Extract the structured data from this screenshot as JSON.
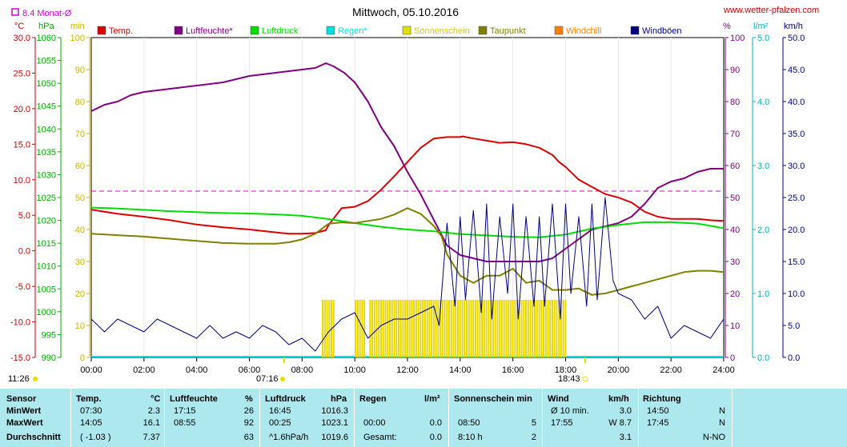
{
  "header": {
    "title": "Mittwoch, 05.10.2016",
    "site": "www.wetter-pfalzen.com",
    "avg_marker": "8.4 Monat-Ø",
    "unit_temp": "°C",
    "unit_pressure": "hPa",
    "unit_sun": "min",
    "unit_humidity": "%",
    "unit_rain": "l/m²",
    "unit_wind": "km/h"
  },
  "legend": [
    {
      "label": "Temp.",
      "color": "#dd0000"
    },
    {
      "label": "Luftfeuchte*",
      "color": "#800080"
    },
    {
      "label": "Luftdruck",
      "color": "#00dd00"
    },
    {
      "label": "Regen*",
      "color": "#00e0e0"
    },
    {
      "label": "Sonnenschein",
      "color": "#e0e000"
    },
    {
      "label": "Taupunkt",
      "color": "#808000"
    },
    {
      "label": "Windchill",
      "color": "#ff8000"
    },
    {
      "label": "Windböen",
      "color": "#000080"
    }
  ],
  "sun": {
    "sunrise": "07:16",
    "sunset": "18:43",
    "daylength": "11:26"
  },
  "chart_data": {
    "type": "line",
    "title": "Mittwoch, 05.10.2016",
    "x_ticks": [
      "00:00",
      "02:00",
      "04:00",
      "06:00",
      "08:00",
      "10:00",
      "12:00",
      "14:00",
      "16:00",
      "18:00",
      "20:00",
      "22:00",
      "24:00"
    ],
    "x_range_hours": [
      0,
      24
    ],
    "axes": {
      "temp": {
        "label": "°C",
        "range": [
          -15,
          30
        ],
        "ticks": [
          "30.0",
          "25.0",
          "20.0",
          "15.0",
          "10.0",
          "5.0",
          "0.0",
          "-5.0",
          "-10.0",
          "-15.0"
        ]
      },
      "pressure": {
        "label": "hPa",
        "range": [
          990,
          1060
        ],
        "ticks": [
          "1060",
          "1055",
          "1050",
          "1045",
          "1040",
          "1035",
          "1030",
          "1025",
          "1020",
          "1015",
          "1010",
          "1005",
          "1000",
          "995",
          "990"
        ]
      },
      "sun": {
        "label": "min",
        "range": [
          0,
          100
        ],
        "ticks": [
          "100",
          "90",
          "80",
          "70",
          "60",
          "50",
          "40",
          "30",
          "20",
          "10",
          "0"
        ]
      },
      "humidity": {
        "label": "%",
        "range": [
          0,
          100
        ],
        "ticks": [
          "100",
          "90",
          "80",
          "70",
          "60",
          "50",
          "40",
          "30",
          "20",
          "10",
          "0"
        ]
      },
      "rain": {
        "label": "l/m²",
        "range": [
          0,
          5
        ],
        "ticks": [
          "5.0",
          "4.0",
          "3.0",
          "2.0",
          "1.0",
          "0.0"
        ]
      },
      "wind": {
        "label": "km/h",
        "range": [
          0,
          50
        ],
        "ticks": [
          "50.0",
          "45.0",
          "40.0",
          "35.0",
          "30.0",
          "25.0",
          "20.0",
          "15.0",
          "10.0",
          "5.0",
          "0.0"
        ]
      }
    },
    "monthly_avg_temp": 8.4,
    "series": [
      {
        "name": "Temp.",
        "axis": "temp",
        "color": "#dd0000",
        "x": [
          0,
          1,
          2,
          3,
          4,
          5,
          6,
          7,
          7.5,
          8,
          8.5,
          8.9,
          9,
          9.5,
          10,
          10.5,
          11,
          11.5,
          12,
          12.5,
          13,
          13.5,
          14,
          14.1,
          14.5,
          15,
          15.5,
          16,
          16.5,
          17,
          17.5,
          17.75,
          18,
          18.5,
          19,
          19.5,
          20,
          20.5,
          21,
          21.5,
          22,
          22.5,
          23,
          23.5,
          24
        ],
        "y": [
          5.8,
          5.2,
          4.8,
          4.3,
          3.7,
          3.3,
          3.0,
          2.6,
          2.4,
          2.4,
          2.5,
          2.9,
          3.6,
          6.0,
          6.2,
          7.0,
          8.6,
          10.5,
          12.5,
          14.5,
          15.8,
          16.0,
          16.0,
          16.1,
          15.8,
          15.5,
          15.2,
          15.3,
          15.0,
          14.5,
          13.5,
          12.5,
          11.8,
          10.0,
          9.0,
          8.0,
          7.5,
          6.8,
          5.5,
          4.8,
          4.5,
          4.5,
          4.5,
          4.3,
          4.2
        ]
      },
      {
        "name": "Luftfeuchte*",
        "axis": "humidity",
        "color": "#800080",
        "x": [
          0,
          0.5,
          1,
          1.5,
          2,
          3,
          4,
          5,
          6,
          7,
          8,
          8.5,
          8.9,
          9.2,
          9.6,
          10,
          10.5,
          11,
          11.5,
          12,
          12.5,
          13,
          13.5,
          14,
          14.5,
          15,
          15.5,
          16,
          16.5,
          17,
          17.5,
          18,
          18.5,
          19,
          19.5,
          20,
          20.5,
          21,
          21.5,
          22,
          22.5,
          23,
          23.5,
          24
        ],
        "y": [
          77,
          79,
          80,
          82,
          83,
          84,
          85,
          86,
          88,
          89,
          90,
          90.5,
          92,
          91,
          89,
          86,
          80,
          72,
          66,
          58,
          51,
          43,
          35,
          32,
          31,
          30,
          30,
          30,
          30,
          30,
          31,
          34,
          37,
          40,
          41,
          42,
          44,
          48,
          53,
          55,
          56,
          58,
          59,
          59
        ]
      },
      {
        "name": "Luftdruck",
        "axis": "pressure",
        "color": "#00dd00",
        "x": [
          0,
          1,
          2,
          3,
          4,
          5,
          6,
          7,
          8,
          9,
          10,
          11,
          12,
          13,
          14,
          15,
          16,
          17,
          18,
          19,
          20,
          21,
          22,
          23,
          24
        ],
        "y": [
          1022.8,
          1022.6,
          1022.3,
          1022.0,
          1021.8,
          1021.6,
          1021.5,
          1021.3,
          1021.0,
          1020.3,
          1019.4,
          1018.6,
          1018.0,
          1017.6,
          1017.0,
          1016.7,
          1016.4,
          1016.3,
          1016.9,
          1018.2,
          1019.0,
          1019.6,
          1019.6,
          1019.3,
          1018.3
        ]
      },
      {
        "name": "Taupunkt",
        "axis": "temp",
        "color": "#808000",
        "x": [
          0,
          1,
          2,
          3,
          4,
          5,
          6,
          7,
          7.5,
          8,
          8.5,
          9,
          9.5,
          10,
          10.5,
          11,
          11.5,
          12,
          12.5,
          13,
          13.3,
          13.5,
          14,
          14.5,
          15,
          15.5,
          16,
          16.5,
          17,
          17.5,
          18,
          18.5,
          19,
          19.5,
          20,
          20.5,
          21,
          21.5,
          22,
          22.5,
          23,
          23.5,
          24
        ],
        "y": [
          2.4,
          2.2,
          2.0,
          1.7,
          1.4,
          1.1,
          1.0,
          1.0,
          1.2,
          1.6,
          2.4,
          3.8,
          4.0,
          3.9,
          4.2,
          4.5,
          5.1,
          6.0,
          5.2,
          3.5,
          2.0,
          -0.5,
          -3.5,
          -4.5,
          -3.5,
          -3.5,
          -2.5,
          -4.5,
          -4.2,
          -5.5,
          -5.5,
          -5.3,
          -6.2,
          -6.0,
          -5.5,
          -5.0,
          -4.5,
          -4.0,
          -3.5,
          -3.0,
          -2.8,
          -2.8,
          -3.0
        ]
      },
      {
        "name": "Windböen",
        "axis": "wind",
        "color": "#000080",
        "x": [
          0,
          0.5,
          1,
          1.5,
          2,
          2.5,
          3,
          3.5,
          4,
          4.5,
          5,
          5.5,
          6,
          6.5,
          7,
          7.5,
          8,
          8.5,
          9,
          9.5,
          10,
          10.5,
          11,
          11.5,
          12,
          12.5,
          13,
          13.2,
          13.5,
          13.8,
          14,
          14.2,
          14.5,
          14.8,
          15,
          15.2,
          15.5,
          15.8,
          16,
          16.2,
          16.5,
          16.8,
          17,
          17.2,
          17.5,
          17.8,
          18,
          18.2,
          18.5,
          18.8,
          19,
          19.2,
          19.5,
          19.8,
          20,
          20.5,
          21,
          21.5,
          22,
          22.5,
          23,
          23.5,
          24
        ],
        "y": [
          6,
          4,
          6,
          5,
          4,
          6,
          5,
          4,
          3,
          5,
          3,
          4,
          3,
          5,
          4,
          2,
          3,
          1,
          4,
          6,
          7,
          3,
          5,
          6,
          6,
          7,
          8,
          5,
          21,
          8,
          22,
          9,
          23,
          7,
          24,
          6,
          22,
          10,
          24,
          6,
          22,
          8,
          22,
          8,
          24,
          6,
          24,
          10,
          22,
          8,
          24,
          9,
          25,
          12,
          10,
          9,
          6,
          8,
          3,
          5,
          4,
          3,
          6
        ]
      }
    ],
    "sunshine_intervals": [
      [
        8.75,
        9.2
      ],
      [
        10.0,
        10.35
      ],
      [
        10.55,
        18.0
      ]
    ],
    "sunshine_value_min": 3
  },
  "table": {
    "headers": {
      "sensor": "Sensor",
      "temp": "Temp.",
      "temp_unit": "°C",
      "hum": "Luftfeuchte",
      "hum_unit": "%",
      "press": "Luftdruck",
      "press_unit": "hPa",
      "rain": "Regen",
      "rain_unit": "l/m²",
      "sun": "Sonnenschein min",
      "wind": "Wind",
      "wind_unit": "km/h",
      "dir": "Richtung"
    },
    "rows": [
      {
        "label": "MinWert",
        "temp_time": "07:30",
        "temp_val": "2.3",
        "hum_time": "17:15",
        "hum_val": "26",
        "press_time": "16:45",
        "press_val": "1016.3",
        "rain_time": "",
        "rain_val": "",
        "sun_time": "",
        "sun_val": "",
        "wind_time": "Ø 10 min.",
        "wind_val": "3.0",
        "dir_time": "14:50",
        "dir_val": "N"
      },
      {
        "label": "MaxWert",
        "temp_time": "14:05",
        "temp_val": "16.1",
        "hum_time": "08:55",
        "hum_val": "92",
        "press_time": "00:25",
        "press_val": "1023.1",
        "rain_time": "00:00",
        "rain_val": "0.0",
        "sun_time": "08:50",
        "sun_val": "5",
        "wind_time": "17:55",
        "wind_val": "W 8.7",
        "dir_time": "17:45",
        "dir_val": "N"
      },
      {
        "label": "Durchschnitt",
        "temp_time": "( -1.03 )",
        "temp_val": "7.37",
        "hum_time": "",
        "hum_val": "63",
        "press_time": "^1.6hPa/h",
        "press_val": "1019.6",
        "rain_time": "Gesamt:",
        "rain_val": "0.0",
        "sun_time": "8:10 h",
        "sun_val": "2",
        "wind_time": "",
        "wind_val": "3.1",
        "dir_time": "",
        "dir_val": "N-NO"
      }
    ]
  }
}
